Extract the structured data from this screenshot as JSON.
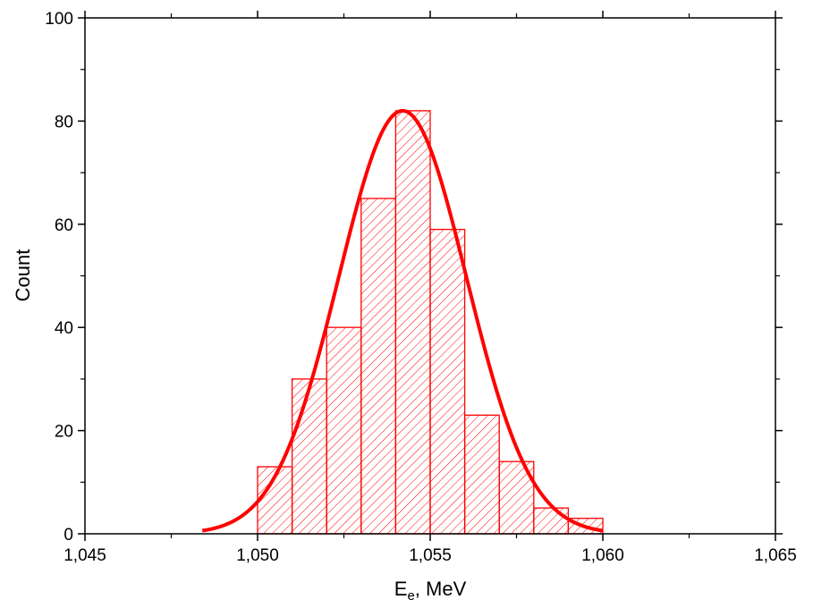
{
  "chart_data": {
    "type": "bar",
    "subtype": "histogram with gaussian fit",
    "xlabel": {
      "main": "E",
      "sub": "e",
      "rest": ", MeV"
    },
    "ylabel": "Count",
    "xlim": [
      1.045,
      1.065
    ],
    "ylim": [
      0,
      100
    ],
    "x_ticks": [
      {
        "value": 1.045,
        "label": "1,045"
      },
      {
        "value": 1.05,
        "label": "1,050"
      },
      {
        "value": 1.055,
        "label": "1,055"
      },
      {
        "value": 1.06,
        "label": "1,060"
      },
      {
        "value": 1.065,
        "label": "1,065"
      }
    ],
    "y_ticks": [
      {
        "value": 0,
        "label": "0"
      },
      {
        "value": 20,
        "label": "20"
      },
      {
        "value": 40,
        "label": "40"
      },
      {
        "value": 60,
        "label": "60"
      },
      {
        "value": 80,
        "label": "80"
      },
      {
        "value": 100,
        "label": "100"
      }
    ],
    "bins": [
      {
        "x0": 1.05,
        "x1": 1.051,
        "count": 13
      },
      {
        "x0": 1.051,
        "x1": 1.052,
        "count": 30
      },
      {
        "x0": 1.052,
        "x1": 1.053,
        "count": 40
      },
      {
        "x0": 1.053,
        "x1": 1.054,
        "count": 65
      },
      {
        "x0": 1.054,
        "x1": 1.055,
        "count": 82
      },
      {
        "x0": 1.055,
        "x1": 1.056,
        "count": 59
      },
      {
        "x0": 1.056,
        "x1": 1.057,
        "count": 23
      },
      {
        "x0": 1.057,
        "x1": 1.058,
        "count": 14
      },
      {
        "x0": 1.058,
        "x1": 1.059,
        "count": 5
      },
      {
        "x0": 1.059,
        "x1": 1.06,
        "count": 3
      }
    ],
    "fit_curve": {
      "type": "gaussian",
      "amplitude": 82,
      "center": 1.0542,
      "sigma": 0.00185,
      "x_range": [
        1.0484,
        1.06
      ]
    },
    "colors": {
      "bars": "#ff0000",
      "fit": "#ff0000",
      "axes": "#000000"
    },
    "grid": false,
    "legend": "none"
  }
}
